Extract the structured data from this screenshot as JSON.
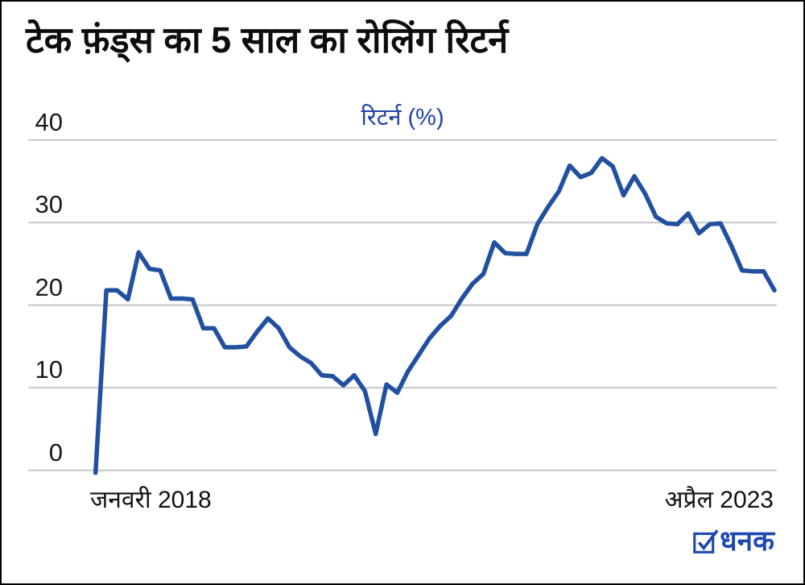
{
  "header": {
    "title": "टेक फ़ंड्स का 5 साल का रोलिंग रिटर्न"
  },
  "chart_data": {
    "type": "line",
    "title": "टेक फ़ंड्स का 5 साल का रोलिंग रिटर्न",
    "ylabel": "रिटर्न (%)",
    "x_start_label": "जनवरी 2018",
    "x_end_label": "अप्रैल 2023",
    "ylim": [
      0,
      40
    ],
    "yticks": [
      0,
      10,
      20,
      30,
      40
    ],
    "grid": "horizontal",
    "legend_position": "none",
    "line_color": "#20509f",
    "grid_color": "#c7c7c7",
    "x": [
      "2018-01",
      "2018-02",
      "2018-03",
      "2018-04",
      "2018-05",
      "2018-06",
      "2018-07",
      "2018-08",
      "2018-09",
      "2018-10",
      "2018-11",
      "2018-12",
      "2019-01",
      "2019-02",
      "2019-03",
      "2019-04",
      "2019-05",
      "2019-06",
      "2019-07",
      "2019-08",
      "2019-09",
      "2019-10",
      "2019-11",
      "2019-12",
      "2020-01",
      "2020-02",
      "2020-03",
      "2020-04",
      "2020-05",
      "2020-06",
      "2020-07",
      "2020-08",
      "2020-09",
      "2020-10",
      "2020-11",
      "2020-12",
      "2021-01",
      "2021-02",
      "2021-03",
      "2021-04",
      "2021-05",
      "2021-06",
      "2021-07",
      "2021-08",
      "2021-09",
      "2021-10",
      "2021-11",
      "2021-12",
      "2022-01",
      "2022-02",
      "2022-03",
      "2022-04",
      "2022-05",
      "2022-06",
      "2022-07",
      "2022-08",
      "2022-09",
      "2022-10",
      "2022-11",
      "2022-12",
      "2023-01",
      "2023-02",
      "2023-03",
      "2023-04"
    ],
    "values": [
      -0.3,
      21.8,
      21.8,
      20.7,
      26.4,
      24.4,
      24.2,
      20.8,
      20.8,
      20.7,
      17.2,
      17.2,
      14.9,
      14.9,
      15.0,
      16.8,
      18.4,
      17.2,
      14.9,
      13.8,
      13.0,
      11.5,
      11.4,
      10.3,
      11.5,
      9.6,
      4.4,
      10.4,
      9.4,
      12.0,
      14.0,
      16.0,
      17.5,
      18.7,
      20.8,
      22.6,
      23.8,
      27.6,
      26.3,
      26.2,
      26.2,
      29.8,
      31.9,
      33.8,
      36.9,
      35.5,
      36.0,
      37.8,
      36.8,
      33.3,
      35.6,
      33.5,
      30.7,
      29.9,
      29.8,
      31.1,
      28.7,
      29.8,
      29.9,
      27.2,
      24.2,
      24.1,
      24.1,
      21.8
    ]
  },
  "footer": {
    "brand": "धनक",
    "brand_icon": "checkbox-check-icon",
    "brand_color": "#1e49ae"
  }
}
